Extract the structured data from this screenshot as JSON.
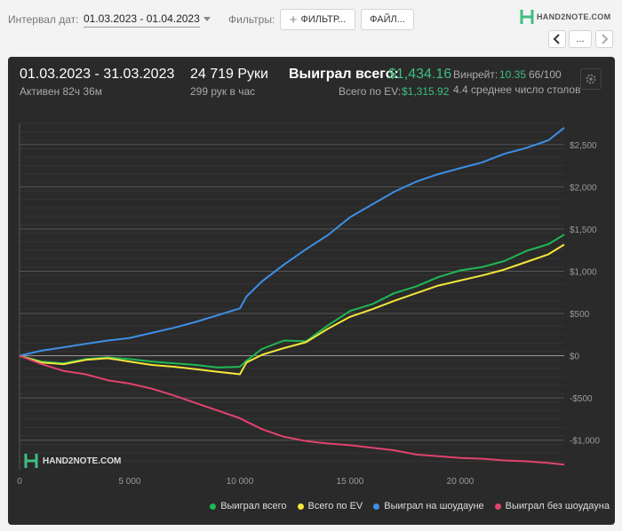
{
  "toolbar": {
    "date_label": "Интервал дат:",
    "date_value": "01.03.2023 - 01.04.2023",
    "filters_label": "Фильтры:",
    "filter_button": "ФИЛЬТР...",
    "file_button": "ФАЙЛ...",
    "logo_text": "HAND2NOTE.COM",
    "nav_more": "..."
  },
  "stats": {
    "period": "01.03.2023 - 31.03.2023",
    "active": "Активен 82ч 36м",
    "hands": "24 719 Руки",
    "hands_per_hour": "299 рук в час",
    "won_total_label": "Выиграл всего:",
    "won_total_value": "$1,434.16",
    "ev_label": "Всего по EV:",
    "ev_value": "$1,315.92",
    "winrate_label": "Винрейт:",
    "winrate_value": "10.35",
    "winrate_extra": "66/100",
    "avg_tables": "4.4 среднее число столов"
  },
  "watermark": "HAND2NOTE.COM",
  "colors": {
    "panel_bg": "#2a2a2a",
    "won_total": "#1db954",
    "ev": "#f5e63a",
    "showdown": "#3d8fe6",
    "non_showdown": "#e0436e",
    "accent_green": "#3fbf7f"
  },
  "chart_data": {
    "type": "line",
    "xlabel": "",
    "ylabel": "",
    "xlim": [
      0,
      24719
    ],
    "ylim": [
      -1350,
      2750
    ],
    "x_ticks": [
      0,
      5000,
      10000,
      15000,
      20000
    ],
    "x_tick_labels": [
      "0",
      "5 000",
      "10 000",
      "15 000",
      "20 000"
    ],
    "y_ticks": [
      2500,
      2000,
      1500,
      1000,
      500,
      0,
      -500,
      -1000
    ],
    "y_tick_labels": [
      "$2,500",
      "$2,000",
      "$1,500",
      "$1,000",
      "$500",
      "$0",
      "-$500",
      "-$1,000"
    ],
    "grid": true,
    "legend_position": "bottom-right",
    "x": [
      0,
      1000,
      2000,
      3000,
      4000,
      5000,
      6000,
      7000,
      8000,
      9000,
      10000,
      10300,
      11000,
      12000,
      13000,
      14000,
      15000,
      16000,
      17000,
      18000,
      19000,
      20000,
      21000,
      22000,
      23000,
      24000,
      24719
    ],
    "series": [
      {
        "name": "Выиграл всего",
        "color": "#1db954",
        "values": [
          0,
          -70,
          -90,
          -40,
          -20,
          -40,
          -70,
          -90,
          -110,
          -140,
          -130,
          -60,
          80,
          180,
          170,
          360,
          530,
          610,
          740,
          820,
          930,
          1010,
          1050,
          1120,
          1240,
          1320,
          1434
        ]
      },
      {
        "name": "Всего по EV",
        "color": "#f5e63a",
        "values": [
          0,
          -80,
          -100,
          -50,
          -30,
          -70,
          -110,
          -130,
          -160,
          -190,
          -220,
          -80,
          10,
          90,
          160,
          320,
          460,
          550,
          650,
          740,
          830,
          890,
          950,
          1020,
          1110,
          1200,
          1316
        ]
      },
      {
        "name": "Выиграл на шоудауне",
        "color": "#3d8fe6",
        "values": [
          0,
          60,
          100,
          140,
          180,
          210,
          270,
          330,
          400,
          480,
          560,
          700,
          880,
          1080,
          1260,
          1430,
          1640,
          1790,
          1940,
          2060,
          2150,
          2220,
          2290,
          2390,
          2460,
          2550,
          2700
        ]
      },
      {
        "name": "Выиграл без шоудауна",
        "color": "#e0436e",
        "values": [
          0,
          -100,
          -180,
          -220,
          -290,
          -330,
          -390,
          -470,
          -560,
          -650,
          -740,
          -780,
          -870,
          -960,
          -1010,
          -1040,
          -1060,
          -1090,
          -1120,
          -1170,
          -1190,
          -1210,
          -1220,
          -1240,
          -1250,
          -1270,
          -1290
        ]
      }
    ]
  }
}
